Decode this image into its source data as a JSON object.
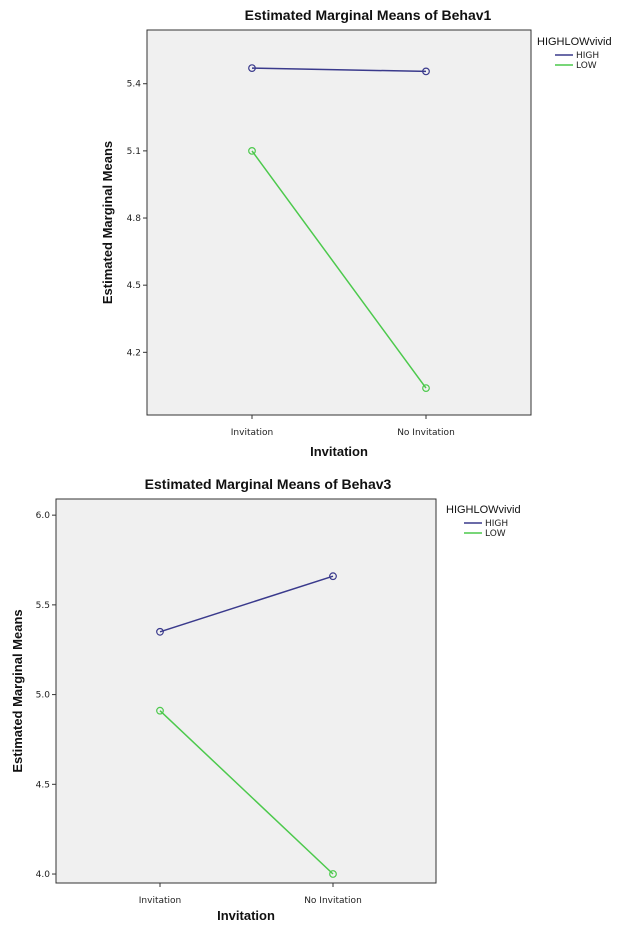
{
  "chart_data": [
    {
      "type": "line",
      "title": "Estimated Marginal Means of Behav1",
      "xlabel": "Invitation",
      "ylabel": "Estimated Marginal Means",
      "categories": [
        "Invitation",
        "No Invitation"
      ],
      "ylim": [
        3.92,
        5.64
      ],
      "yticks": [
        "4.2",
        "4.5",
        "4.8",
        "5.1",
        "5.4"
      ],
      "grid": false,
      "legend_position": "right",
      "legend_title": "HIGHLOWvivid",
      "series": [
        {
          "name": "HIGH",
          "values": [
            5.47,
            5.455
          ],
          "color": "#3a3a8c"
        },
        {
          "name": "LOW",
          "values": [
            5.1,
            4.04
          ],
          "color": "#4cc94c"
        }
      ]
    },
    {
      "type": "line",
      "title": "Estimated Marginal Means of Behav3",
      "xlabel": "Invitation",
      "ylabel": "Estimated Marginal Means",
      "categories": [
        "Invitation",
        "No Invitation"
      ],
      "ylim": [
        3.95,
        6.09
      ],
      "yticks": [
        "4.0",
        "4.5",
        "5.0",
        "5.5",
        "6.0"
      ],
      "grid": false,
      "legend_position": "right",
      "legend_title": "HIGHLOWvivid",
      "series": [
        {
          "name": "HIGH",
          "values": [
            5.35,
            5.66
          ],
          "color": "#3a3a8c"
        },
        {
          "name": "LOW",
          "values": [
            4.91,
            4.0
          ],
          "color": "#4cc94c"
        }
      ]
    }
  ],
  "style": {
    "plot_background": "#f0f0f0",
    "axis_color": "#333333"
  }
}
